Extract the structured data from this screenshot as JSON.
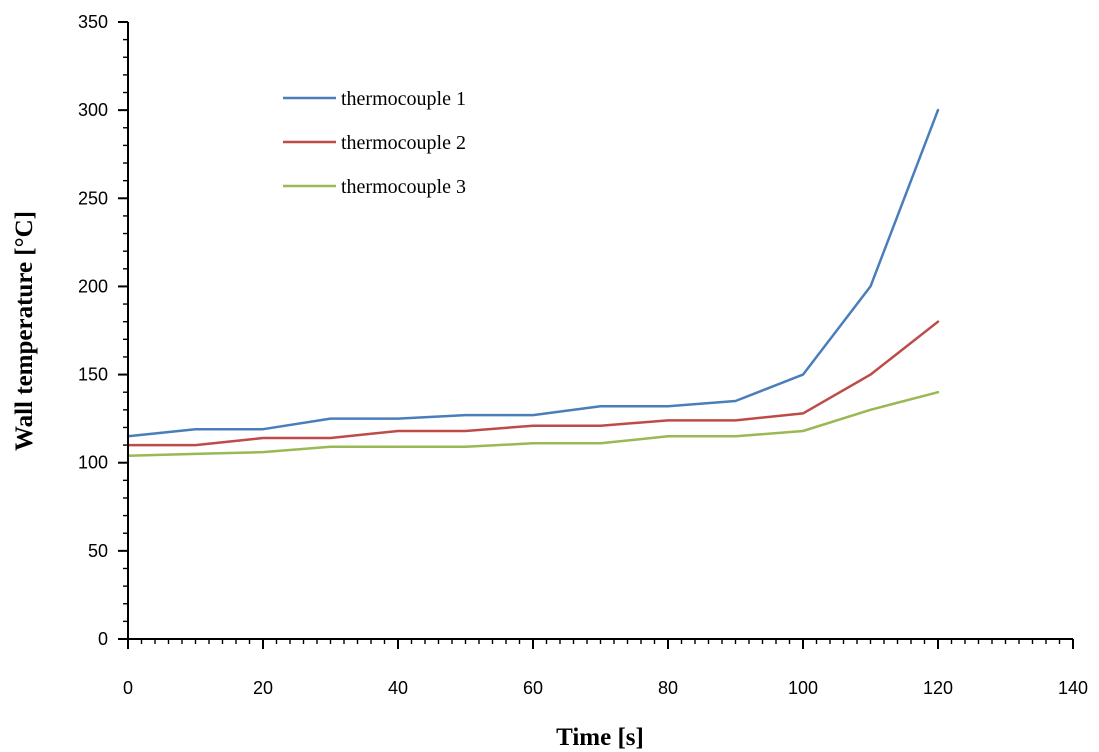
{
  "chart_data": {
    "type": "line",
    "title": "",
    "xlabel": "Time [s]",
    "ylabel": "Wall temperature [°C]",
    "xlim": [
      0,
      140
    ],
    "ylim": [
      0,
      350
    ],
    "x_ticks": [
      0,
      20,
      40,
      60,
      80,
      100,
      120,
      140
    ],
    "y_ticks": [
      0,
      50,
      100,
      150,
      200,
      250,
      300,
      350
    ],
    "x_tick_labels": [
      "0",
      "20",
      "40",
      "60",
      "80",
      "100",
      "120",
      "140"
    ],
    "y_tick_labels": [
      "0",
      "50",
      "100",
      "150",
      "200",
      "250",
      "300",
      "350"
    ],
    "x_minor_step": 2,
    "y_minor_step": 10,
    "grid": false,
    "legend_position": "top-left",
    "x": [
      0,
      10,
      20,
      30,
      40,
      50,
      60,
      70,
      80,
      90,
      100,
      110,
      120
    ],
    "series": [
      {
        "name": "thermocouple 1",
        "color": "#4a7ebb",
        "values": [
          115,
          119,
          119,
          125,
          125,
          127,
          127,
          132,
          132,
          135,
          150,
          200,
          300
        ]
      },
      {
        "name": "thermocouple 2",
        "color": "#be4b48",
        "values": [
          110,
          110,
          114,
          114,
          118,
          118,
          121,
          121,
          124,
          124,
          128,
          150,
          180
        ]
      },
      {
        "name": "thermocouple 3",
        "color": "#98b954",
        "values": [
          104,
          105,
          106,
          109,
          109,
          109,
          111,
          111,
          115,
          115,
          118,
          130,
          140
        ]
      }
    ]
  }
}
